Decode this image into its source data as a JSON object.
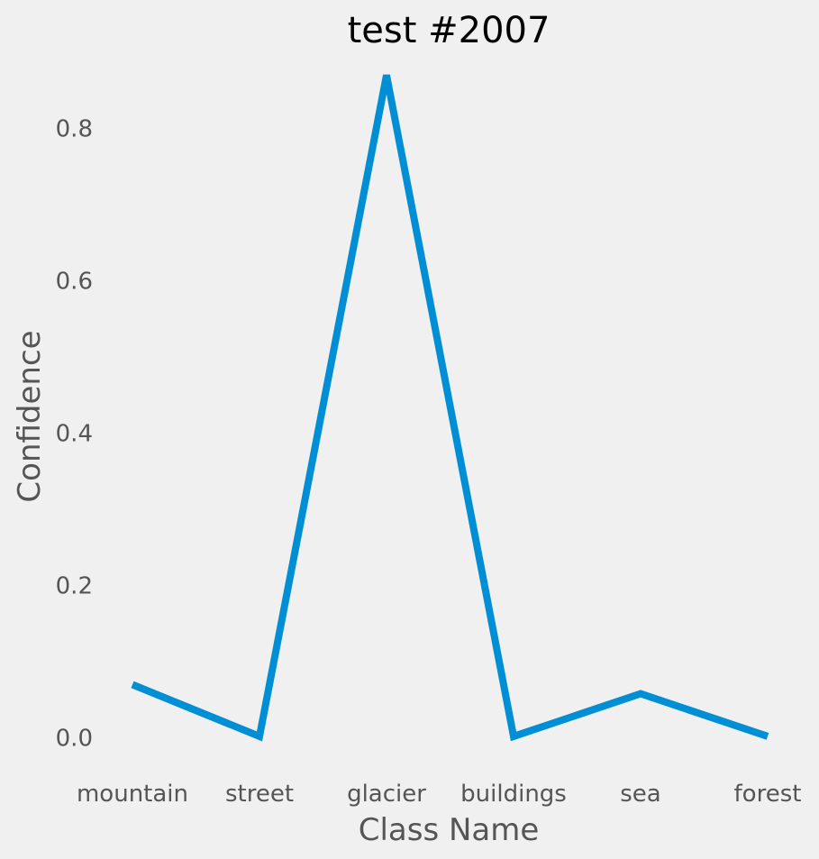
{
  "chart_data": {
    "type": "line",
    "title": "test #2007",
    "xlabel": "Class Name",
    "ylabel": "Confidence",
    "categories": [
      "mountain",
      "street",
      "glacier",
      "buildings",
      "sea",
      "forest"
    ],
    "series": [
      {
        "values": [
          0.07,
          0.002,
          0.87,
          0.002,
          0.058,
          0.002
        ]
      }
    ],
    "yticks": [
      "0.0",
      "0.2",
      "0.4",
      "0.6",
      "0.8"
    ],
    "ylim": [
      -0.03,
      0.9
    ],
    "grid": false,
    "line_color": "#008fd5",
    "background_color": "#f0f0f0"
  }
}
